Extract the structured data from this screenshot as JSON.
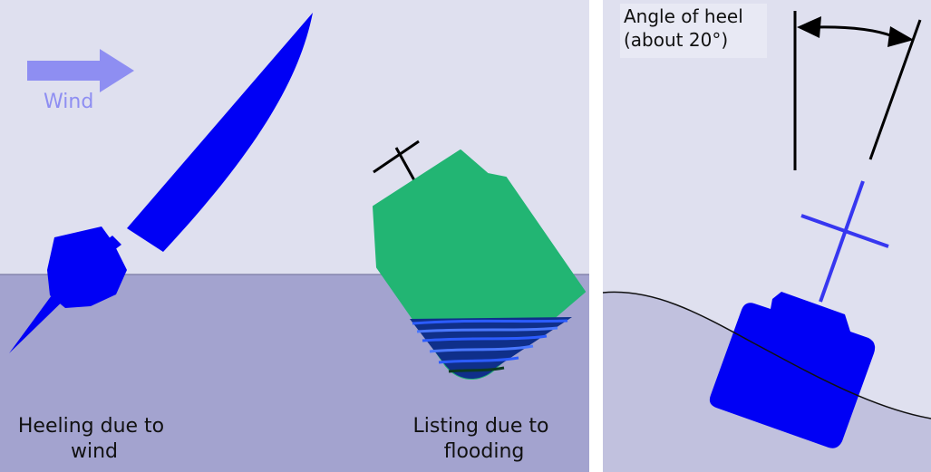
{
  "left_panel": {
    "wind_label": "Wind",
    "heeling_caption": [
      "Heeling due to",
      "wind"
    ],
    "listing_caption": [
      "Listing due to",
      "flooding"
    ]
  },
  "right_panel": {
    "angle_label": [
      "Angle of heel",
      "(about 20°)"
    ]
  },
  "colors": {
    "sky": "#dfe0ef",
    "water": "#a3a3cf",
    "water_right": "#c1c1de",
    "boat_blue": "#0000f5",
    "green_hull": "#22b573",
    "wind_arrow": "#8e8ef2",
    "mast_line": "#3737f0"
  }
}
